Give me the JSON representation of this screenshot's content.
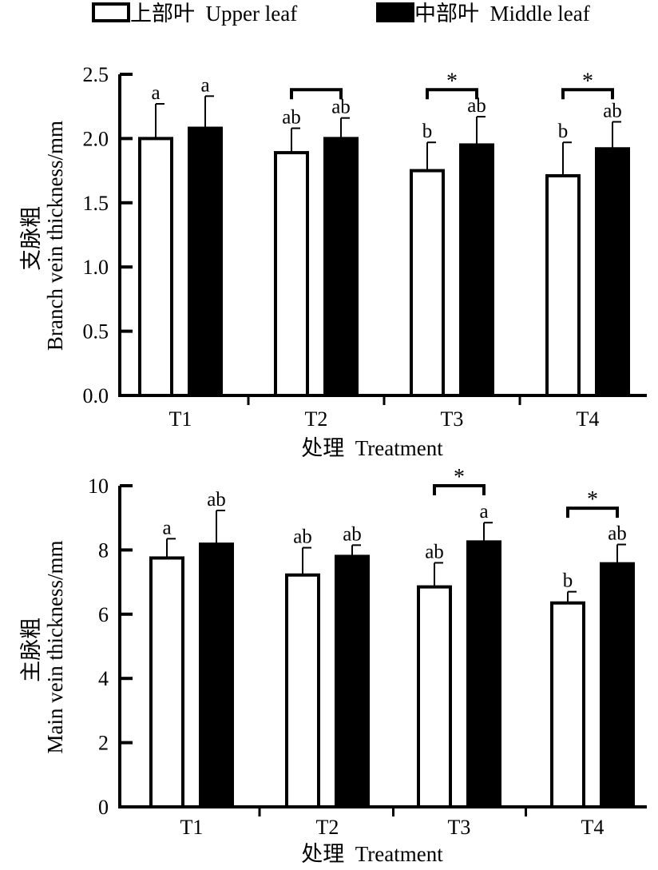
{
  "legend": {
    "position": "top-center",
    "items": [
      {
        "label": "上部叶  Upper leaf",
        "fill": "#ffffff"
      },
      {
        "label": "中部叶  Middle leaf",
        "fill": "#000000"
      }
    ]
  },
  "colors": {
    "upper": "#ffffff",
    "middle": "#000000",
    "stroke": "#000000"
  },
  "chart_data": [
    {
      "type": "bar",
      "title": "",
      "xlabel": "处理  Treatment",
      "ylabel_cn": "支脉粗",
      "ylabel": "Branch vein thickness/mm",
      "ylim": [
        0,
        2.5
      ],
      "yticks": [
        0,
        0.5,
        1.0,
        1.5,
        2.0,
        2.5
      ],
      "ytick_labels": [
        "0.0",
        "0.5",
        "1.0",
        "1.5",
        "2.0",
        "2.5"
      ],
      "grid": false,
      "categories": [
        "T1",
        "T2",
        "T3",
        "T4"
      ],
      "series": [
        {
          "name": "上部叶  Upper leaf",
          "values": [
            2.0,
            1.89,
            1.75,
            1.71
          ],
          "errors": [
            0.27,
            0.19,
            0.22,
            0.26
          ],
          "labels": [
            "a",
            "ab",
            "b",
            "b"
          ]
        },
        {
          "name": "中部叶  Middle leaf",
          "values": [
            2.08,
            2.0,
            1.95,
            1.92
          ],
          "errors": [
            0.25,
            0.16,
            0.22,
            0.21
          ],
          "labels": [
            "a",
            "ab",
            "ab",
            "ab"
          ]
        }
      ],
      "brackets": [
        {
          "category": 1,
          "y": 2.38,
          "label": ""
        },
        {
          "category": 2,
          "y": 2.38,
          "label": "*"
        },
        {
          "category": 3,
          "y": 2.38,
          "label": "*"
        }
      ]
    },
    {
      "type": "bar",
      "title": "",
      "xlabel": "处理  Treatment",
      "ylabel_cn": "主脉粗",
      "ylabel": "Main vein thickness/mm",
      "ylim": [
        0,
        10
      ],
      "yticks": [
        0,
        2,
        4,
        6,
        8,
        10
      ],
      "ytick_labels": [
        "0",
        "2",
        "4",
        "6",
        "8",
        "10"
      ],
      "grid": false,
      "categories": [
        "T1",
        "T2",
        "T3",
        "T4"
      ],
      "series": [
        {
          "name": "上部叶  Upper leaf",
          "values": [
            7.75,
            7.22,
            6.85,
            6.35
          ],
          "errors": [
            0.6,
            0.85,
            0.75,
            0.35
          ],
          "labels": [
            "a",
            "ab",
            "ab",
            "b"
          ]
        },
        {
          "name": "中部叶  Middle leaf",
          "values": [
            8.18,
            7.8,
            8.25,
            7.57
          ],
          "errors": [
            1.05,
            0.35,
            0.6,
            0.6
          ],
          "labels": [
            "ab",
            "ab",
            "a",
            "ab"
          ]
        }
      ],
      "brackets": [
        {
          "category": 2,
          "y": 10.0,
          "label": "*"
        },
        {
          "category": 3,
          "y": 9.3,
          "label": "*"
        }
      ]
    }
  ]
}
